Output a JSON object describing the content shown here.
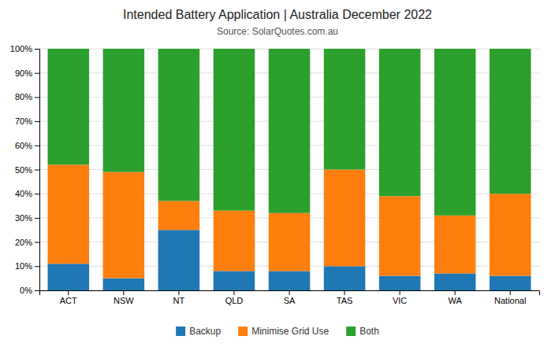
{
  "chart_data": {
    "type": "bar",
    "title": "Intended Battery Application | Australia December 2022",
    "subtitle": "Source: SolarQuotes.com.au",
    "categories": [
      "ACT",
      "NSW",
      "NT",
      "QLD",
      "SA",
      "TAS",
      "VIC",
      "WA",
      "National"
    ],
    "series": [
      {
        "name": "Backup",
        "values": [
          11,
          5,
          25,
          8,
          8,
          10,
          6,
          7,
          6
        ]
      },
      {
        "name": "Minimise Grid Use",
        "values": [
          41,
          44,
          12,
          25,
          24,
          40,
          33,
          24,
          34
        ]
      },
      {
        "name": "Both",
        "values": [
          48,
          51,
          63,
          67,
          68,
          50,
          61,
          69,
          60
        ]
      }
    ],
    "ylim": [
      0,
      100
    ],
    "yticks": [
      {
        "value": 0,
        "label": "0%"
      },
      {
        "value": 10,
        "label": "10%"
      },
      {
        "value": 20,
        "label": "20%"
      },
      {
        "value": 30,
        "label": "30%"
      },
      {
        "value": 40,
        "label": "40%"
      },
      {
        "value": 50,
        "label": "50%"
      },
      {
        "value": 60,
        "label": "60%"
      },
      {
        "value": 70,
        "label": "70%"
      },
      {
        "value": 80,
        "label": "80%"
      },
      {
        "value": 90,
        "label": "90%"
      },
      {
        "value": 100,
        "label": "100%"
      }
    ],
    "stacked": true,
    "grid": true,
    "legend": "bottom"
  }
}
